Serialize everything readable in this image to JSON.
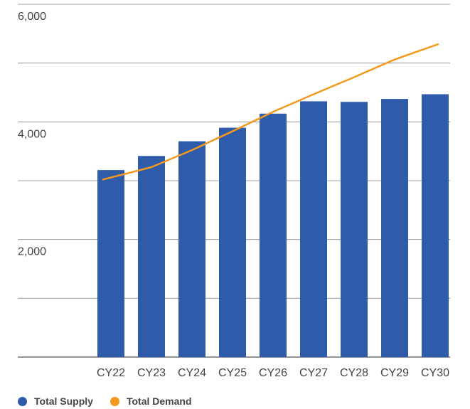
{
  "chart_data": {
    "type": "bar",
    "title": "",
    "xlabel": "",
    "ylabel": "",
    "categories": [
      "CY22",
      "CY23",
      "CY24",
      "CY25",
      "CY26",
      "CY27",
      "CY28",
      "CY29",
      "CY30"
    ],
    "series": [
      {
        "name": "Total Supply",
        "type": "bar",
        "color": "#2E5BAA",
        "values": [
          3180,
          3420,
          3670,
          3900,
          4140,
          4350,
          4340,
          4390,
          4470
        ]
      },
      {
        "name": "Total Demand",
        "type": "line",
        "color": "#F39A1E",
        "values": [
          3020,
          3230,
          3520,
          3840,
          4170,
          4470,
          4760,
          5060,
          5320
        ]
      }
    ],
    "ylim": [
      0,
      6000
    ],
    "y_gridlines": [
      0,
      1000,
      2000,
      3000,
      4000,
      5000,
      6000
    ],
    "y_tick_labels": [
      {
        "value": 2000,
        "label": "2,000"
      },
      {
        "value": 4000,
        "label": "4,000"
      },
      {
        "value": 6000,
        "label": "6,000"
      }
    ],
    "grid": true,
    "legend_position": "bottom-left"
  },
  "legend": {
    "supply_label": "Total Supply",
    "demand_label": "Total Demand",
    "supply_color": "#2E5BAA",
    "demand_color": "#F39A1E"
  }
}
